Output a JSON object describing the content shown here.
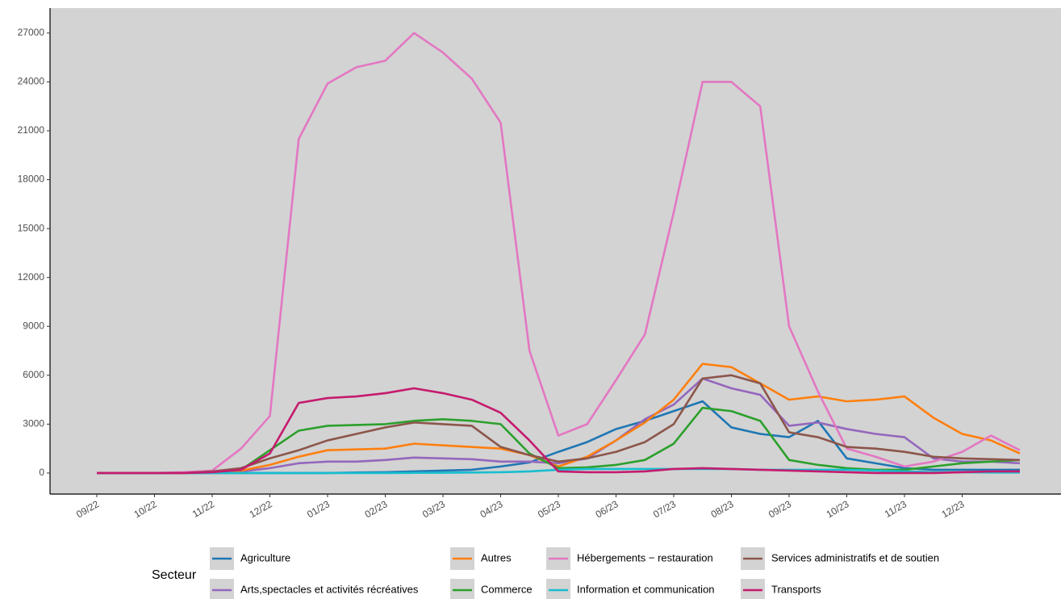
{
  "chart_data": {
    "type": "line",
    "legend_title": "Secteur",
    "categories": [
      "09/22",
      null,
      "10/22",
      null,
      "11/22",
      null,
      "12/22",
      null,
      "01/23",
      null,
      "02/23",
      null,
      "03/23",
      null,
      "04/23",
      null,
      "05/23",
      null,
      "06/23",
      null,
      "07/23",
      null,
      "08/23",
      null,
      "09/23",
      null,
      "10/23",
      null,
      "11/23",
      null,
      "12/23",
      null,
      null
    ],
    "series": [
      {
        "name": "Agriculture",
        "color": "#1f77b4",
        "values": [
          0,
          0,
          0,
          0,
          0,
          0,
          0,
          0,
          0,
          30,
          50,
          100,
          150,
          200,
          400,
          650,
          1300,
          1900,
          2700,
          3200,
          3800,
          4400,
          2800,
          2400,
          2200,
          3200,
          900,
          600,
          300,
          200,
          200,
          200,
          200
        ]
      },
      {
        "name": "Arts,spectacles et activités récréatives",
        "color": "#9467bd",
        "values": [
          0,
          0,
          0,
          0,
          50,
          100,
          300,
          600,
          700,
          700,
          800,
          950,
          900,
          850,
          700,
          700,
          600,
          900,
          2000,
          3300,
          4200,
          5800,
          5200,
          4800,
          2900,
          3100,
          2700,
          2400,
          2200,
          900,
          700,
          700,
          600
        ]
      },
      {
        "name": "Autres",
        "color": "#ff7f0e",
        "values": [
          0,
          0,
          0,
          0,
          50,
          150,
          500,
          1000,
          1400,
          1450,
          1500,
          1800,
          1700,
          1600,
          1500,
          1100,
          400,
          1000,
          2000,
          3100,
          4500,
          6700,
          6500,
          5500,
          4500,
          4700,
          4400,
          4500,
          4700,
          3400,
          2400,
          2000,
          1200
        ]
      },
      {
        "name": "Commerce",
        "color": "#2ca02c",
        "values": [
          0,
          0,
          0,
          0,
          50,
          200,
          1400,
          2600,
          2900,
          2950,
          3000,
          3200,
          3300,
          3200,
          3000,
          1200,
          300,
          350,
          500,
          800,
          1800,
          4000,
          3800,
          3200,
          800,
          500,
          300,
          200,
          200,
          400,
          600,
          700,
          800
        ]
      },
      {
        "name": "Hébergements − restauration",
        "color": "#e377c2",
        "values": [
          0,
          0,
          0,
          50,
          150,
          1500,
          3500,
          20500,
          23900,
          24900,
          25300,
          27000,
          25800,
          24200,
          21500,
          7500,
          2300,
          3000,
          5700,
          8500,
          16000,
          24000,
          24000,
          22500,
          9000,
          5000,
          1500,
          1000,
          400,
          700,
          1300,
          2300,
          1400
        ]
      },
      {
        "name": "Information et communication",
        "color": "#17becf",
        "values": [
          0,
          0,
          0,
          0,
          0,
          0,
          0,
          0,
          0,
          0,
          0,
          10,
          20,
          30,
          50,
          100,
          200,
          250,
          250,
          250,
          250,
          250,
          250,
          200,
          200,
          200,
          200,
          150,
          100,
          50,
          50,
          30,
          30
        ]
      },
      {
        "name": "Services administratifs et de soutien",
        "color": "#8c564b",
        "values": [
          0,
          0,
          0,
          0,
          100,
          300,
          900,
          1400,
          2000,
          2400,
          2800,
          3100,
          3000,
          2900,
          1600,
          1100,
          700,
          900,
          1300,
          1900,
          3000,
          5800,
          6000,
          5500,
          2500,
          2200,
          1600,
          1500,
          1300,
          1000,
          900,
          850,
          800
        ]
      },
      {
        "name": "Transports",
        "color": "#c51b6e",
        "values": [
          0,
          0,
          0,
          0,
          50,
          200,
          1200,
          4300,
          4600,
          4700,
          4900,
          5200,
          4900,
          4500,
          3700,
          2000,
          100,
          50,
          50,
          100,
          250,
          300,
          250,
          200,
          150,
          100,
          50,
          0,
          0,
          0,
          50,
          100,
          100
        ]
      }
    ],
    "ylim": [
      -1290,
      28530
    ],
    "yticks": [
      0,
      3000,
      6000,
      9000,
      12000,
      15000,
      18000,
      21000,
      24000,
      27000
    ],
    "grid": false,
    "background": "#d3d3d3",
    "legend_position": "bottom"
  }
}
